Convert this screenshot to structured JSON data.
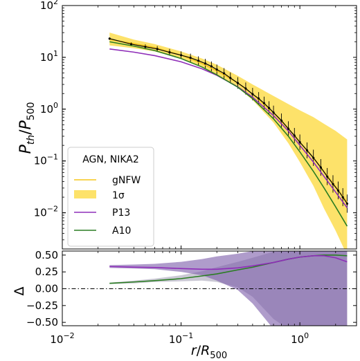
{
  "chart_data": [
    {
      "type": "line",
      "panel": "top",
      "xscale": "log",
      "yscale": "log",
      "xlim": [
        0.01,
        3.0
      ],
      "ylim": [
        0.002,
        100
      ],
      "ylabel": "P_th/P_500",
      "y_ticks": [
        {
          "value": 0.01,
          "base": "10",
          "exp": "−2"
        },
        {
          "value": 0.1,
          "base": "10",
          "exp": "−1"
        },
        {
          "value": 1,
          "base": "10",
          "exp": "0"
        },
        {
          "value": 10,
          "base": "10",
          "exp": "1"
        },
        {
          "value": 100,
          "base": "10",
          "exp": "2"
        }
      ],
      "legend": {
        "title": "AGN, NIKA2",
        "location": "lower-left",
        "entries": [
          {
            "label": "gNFW",
            "kind": "line",
            "color": "#f5c518"
          },
          {
            "label": "1σ",
            "kind": "patch",
            "color": "#fde26a"
          },
          {
            "label": "P13",
            "kind": "line",
            "color": "#8e2db8"
          },
          {
            "label": "A10",
            "kind": "line",
            "color": "#2a7d22"
          }
        ]
      },
      "x": [
        0.025,
        0.04,
        0.06,
        0.1,
        0.15,
        0.2,
        0.3,
        0.4,
        0.6,
        0.8,
        1.0,
        1.3,
        1.6,
        2.0,
        2.5
      ],
      "series": [
        {
          "name": "gNFW",
          "color": "#f5c518",
          "values": [
            22.0,
            18.5,
            15.5,
            11.0,
            7.6,
            5.5,
            3.2,
            1.95,
            0.85,
            0.42,
            0.23,
            0.115,
            0.062,
            0.032,
            0.016
          ]
        },
        {
          "name": "1σ",
          "role": "band",
          "color": "#fde26a",
          "lower": [
            17.0,
            15.0,
            13.0,
            9.5,
            6.6,
            4.7,
            2.6,
            1.5,
            0.55,
            0.22,
            0.095,
            0.033,
            0.012,
            0.0045,
            0.0015
          ],
          "upper": [
            30.0,
            22.0,
            18.0,
            13.0,
            9.5,
            7.2,
            4.4,
            3.0,
            1.8,
            1.25,
            0.95,
            0.7,
            0.52,
            0.38,
            0.26
          ]
        },
        {
          "name": "P13",
          "color": "#8e2db8",
          "values": [
            14.5,
            12.6,
            10.8,
            8.2,
            6.0,
            4.5,
            2.7,
            1.7,
            0.75,
            0.38,
            0.2,
            0.095,
            0.05,
            0.025,
            0.0125
          ]
        },
        {
          "name": "A10",
          "color": "#2a7d22",
          "values": [
            20.0,
            16.5,
            13.5,
            9.5,
            6.5,
            4.6,
            2.65,
            1.6,
            0.65,
            0.3,
            0.15,
            0.063,
            0.03,
            0.013,
            0.0055
          ]
        },
        {
          "name": "data",
          "role": "points",
          "color": "#000000",
          "x": [
            0.025,
            0.038,
            0.05,
            0.063,
            0.08,
            0.1,
            0.12,
            0.14,
            0.16,
            0.18,
            0.2,
            0.23,
            0.26,
            0.3,
            0.35,
            0.4,
            0.45,
            0.5,
            0.55,
            0.6,
            0.7,
            0.8,
            0.9,
            1.0,
            1.15,
            1.3,
            1.5,
            1.7,
            1.9,
            2.1,
            2.3,
            2.5
          ],
          "values": [
            23.0,
            18.0,
            16.0,
            14.5,
            12.5,
            11.0,
            9.8,
            8.6,
            7.6,
            6.7,
            5.8,
            4.9,
            4.0,
            3.2,
            2.5,
            1.95,
            1.6,
            1.3,
            1.05,
            0.86,
            0.6,
            0.42,
            0.31,
            0.23,
            0.16,
            0.115,
            0.075,
            0.05,
            0.036,
            0.027,
            0.02,
            0.015
          ]
        }
      ]
    },
    {
      "type": "line",
      "panel": "bottom",
      "xscale": "log",
      "xlim": [
        0.01,
        3.0
      ],
      "ylim": [
        -0.55,
        0.56
      ],
      "xlabel": "r/R_500",
      "ylabel": "Δ",
      "zero_line": "dash-dot",
      "x_ticks": [
        {
          "value": 0.01,
          "base": "10",
          "exp": "−2"
        },
        {
          "value": 0.1,
          "base": "10",
          "exp": "−1"
        },
        {
          "value": 1,
          "base": "10",
          "exp": "0"
        }
      ],
      "y_ticks": [
        "−0.50",
        "−0.25",
        "0.00",
        "0.25",
        "0.50"
      ],
      "x": [
        0.025,
        0.04,
        0.06,
        0.1,
        0.15,
        0.2,
        0.3,
        0.4,
        0.6,
        0.8,
        1.0,
        1.3,
        1.6,
        2.0,
        2.5
      ],
      "series": [
        {
          "name": "P13",
          "color": "#8e2db8",
          "values": [
            0.33,
            0.32,
            0.315,
            0.3,
            0.29,
            0.29,
            0.31,
            0.34,
            0.39,
            0.44,
            0.47,
            0.49,
            0.49,
            0.46,
            0.4
          ],
          "band_lower": [
            0.31,
            0.3,
            0.29,
            0.25,
            0.2,
            0.12,
            -0.02,
            -0.22,
            -0.6,
            -0.6,
            -0.6,
            -0.6,
            -0.6,
            -0.6,
            -0.6
          ],
          "band_upper": [
            0.35,
            0.36,
            0.37,
            0.4,
            0.44,
            0.48,
            0.52,
            0.56,
            0.56,
            0.56,
            0.56,
            0.56,
            0.56,
            0.56,
            0.56
          ]
        },
        {
          "name": "A10",
          "color": "#2a7d22",
          "values": [
            0.08,
            0.1,
            0.12,
            0.15,
            0.19,
            0.22,
            0.28,
            0.32,
            0.39,
            0.44,
            0.47,
            0.49,
            0.5,
            0.5,
            0.49
          ],
          "band_lower": [
            0.07,
            0.08,
            0.1,
            0.11,
            0.12,
            0.1,
            0.02,
            -0.12,
            -0.45,
            -0.6,
            -0.6,
            -0.6,
            -0.6,
            -0.6,
            -0.6
          ],
          "band_upper": [
            0.09,
            0.12,
            0.15,
            0.2,
            0.26,
            0.32,
            0.4,
            0.46,
            0.55,
            0.56,
            0.56,
            0.56,
            0.56,
            0.56,
            0.56
          ]
        }
      ]
    }
  ]
}
